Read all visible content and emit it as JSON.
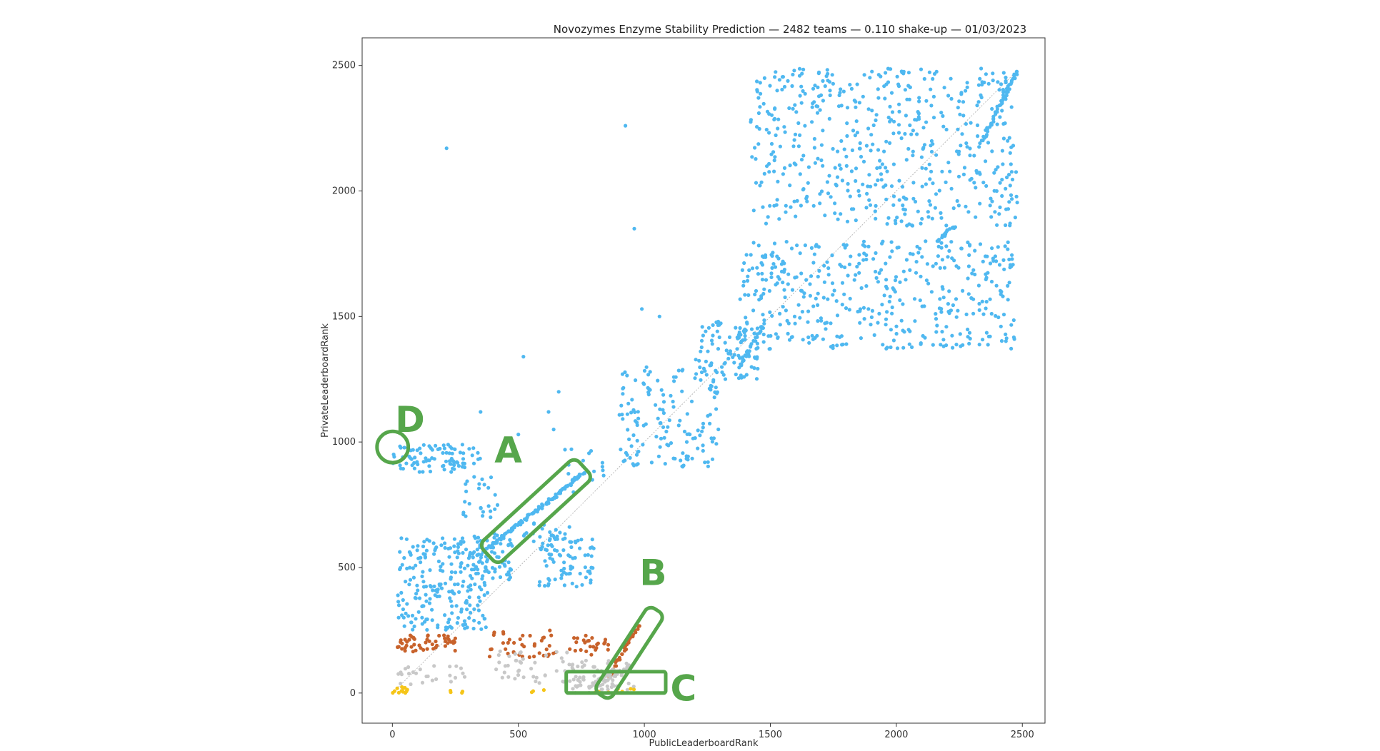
{
  "chart_data": {
    "type": "scatter",
    "title": "Novozymes Enzyme Stability Prediction — 2482 teams — 0.110 shake-up — 01/03/2023",
    "xlabel": "PublicLeaderboardRank",
    "ylabel": "PrivateLeaderboardRank",
    "xlim": [
      -120,
      2590
    ],
    "ylim": [
      -120,
      2610
    ],
    "xticks": [
      0,
      500,
      1000,
      1500,
      2000,
      2500
    ],
    "yticks": [
      0,
      500,
      1000,
      1500,
      2000,
      2500
    ],
    "grid": false,
    "legend": "none",
    "diagonal": {
      "from": [
        0,
        0
      ],
      "to": [
        2482,
        2482
      ],
      "color": "#bbbbbb"
    },
    "colors": {
      "blue": "#4fb8f0",
      "orange": "#c8622b",
      "gray": "#c8c8c8",
      "gold": "#f5c518",
      "annotation": "#56a64b"
    },
    "points": {
      "outliers": [
        [
          215,
          2170
        ],
        [
          925,
          2260
        ],
        [
          960,
          1850
        ],
        [
          990,
          1530
        ],
        [
          1060,
          1500
        ],
        [
          520,
          1340
        ],
        [
          350,
          1120
        ],
        [
          660,
          1200
        ],
        [
          640,
          1050
        ],
        [
          500,
          1030
        ],
        [
          620,
          1120
        ]
      ],
      "lines": [
        {
          "color": "blue",
          "from": [
            370,
            570
          ],
          "to": [
            640,
            780
          ],
          "n": 70
        },
        {
          "color": "blue",
          "from": [
            640,
            780
          ],
          "to": [
            760,
            880
          ],
          "n": 35
        },
        {
          "color": "blue",
          "from": [
            2160,
            1800
          ],
          "to": [
            2230,
            1860
          ],
          "n": 18
        },
        {
          "color": "blue",
          "from": [
            2340,
            2200
          ],
          "to": [
            2480,
            2480
          ],
          "n": 50
        },
        {
          "color": "blue",
          "from": [
            1380,
            1300
          ],
          "to": [
            1480,
            1480
          ],
          "n": 25
        },
        {
          "color": "orange",
          "from": [
            860,
            70
          ],
          "to": [
            980,
            270
          ],
          "n": 30
        },
        {
          "color": "gray",
          "from": [
            780,
            20
          ],
          "to": [
            880,
            90
          ],
          "n": 20
        },
        {
          "color": "gray",
          "from": [
            820,
            30
          ],
          "to": [
            940,
            110
          ],
          "n": 20
        }
      ],
      "clusters": [
        {
          "color": "blue",
          "x": [
            0,
            350
          ],
          "y": [
            880,
            990
          ],
          "n": 90
        },
        {
          "color": "blue",
          "x": [
            20,
            380
          ],
          "y": [
            250,
            620
          ],
          "n": 230
        },
        {
          "color": "blue",
          "x": [
            320,
            480
          ],
          "y": [
            450,
            640
          ],
          "n": 60
        },
        {
          "color": "blue",
          "x": [
            280,
            430
          ],
          "y": [
            700,
            880
          ],
          "n": 25
        },
        {
          "color": "blue",
          "x": [
            580,
            800
          ],
          "y": [
            420,
            620
          ],
          "n": 70
        },
        {
          "color": "blue",
          "x": [
            520,
            720
          ],
          "y": [
            560,
            680
          ],
          "n": 30
        },
        {
          "color": "blue",
          "x": [
            680,
            850
          ],
          "y": [
            800,
            1000
          ],
          "n": 15
        },
        {
          "color": "blue",
          "x": [
            900,
            1300
          ],
          "y": [
            900,
            1300
          ],
          "n": 150
        },
        {
          "color": "blue",
          "x": [
            1200,
            1450
          ],
          "y": [
            1250,
            1500
          ],
          "n": 90
        },
        {
          "color": "blue",
          "x": [
            1380,
            2480
          ],
          "y": [
            1370,
            1800
          ],
          "n": 430
        },
        {
          "color": "blue",
          "x": [
            1420,
            2480
          ],
          "y": [
            1860,
            2490
          ],
          "n": 520
        },
        {
          "color": "orange",
          "x": [
            20,
            250
          ],
          "y": [
            165,
            230
          ],
          "n": 50
        },
        {
          "color": "orange",
          "x": [
            370,
            650
          ],
          "y": [
            140,
            250
          ],
          "n": 40
        },
        {
          "color": "orange",
          "x": [
            700,
            860
          ],
          "y": [
            150,
            230
          ],
          "n": 25
        },
        {
          "color": "gray",
          "x": [
            20,
            300
          ],
          "y": [
            30,
            110
          ],
          "n": 25
        },
        {
          "color": "gray",
          "x": [
            400,
            700
          ],
          "y": [
            40,
            170
          ],
          "n": 40
        },
        {
          "color": "gray",
          "x": [
            700,
            960
          ],
          "y": [
            0,
            130
          ],
          "n": 60
        },
        {
          "color": "gold",
          "x": [
            0,
            60
          ],
          "y": [
            0,
            25
          ],
          "n": 12
        },
        {
          "color": "gold",
          "x": [
            230,
            280
          ],
          "y": [
            0,
            20
          ],
          "n": 4
        },
        {
          "color": "gold",
          "x": [
            480,
            660
          ],
          "y": [
            0,
            15
          ],
          "n": 3
        },
        {
          "color": "gold",
          "x": [
            800,
            960
          ],
          "y": [
            0,
            20
          ],
          "n": 8
        }
      ]
    },
    "annotations": [
      {
        "label": "A",
        "shape": "rotated-rect",
        "x1": 380,
        "y1": 550,
        "x2": 760,
        "y2": 900,
        "halfwidth": 55,
        "label_pos": [
          460,
          920
        ]
      },
      {
        "label": "B",
        "shape": "rotated-rect",
        "x1": 830,
        "y1": -10,
        "x2": 1050,
        "y2": 330,
        "halfwidth": 38,
        "label_pos": [
          1035,
          430
        ]
      },
      {
        "label": "C",
        "shape": "rect",
        "x1": 690,
        "y1": 0,
        "x2": 1085,
        "y2": 85,
        "label_pos": [
          1155,
          -30
        ]
      },
      {
        "label": "D",
        "shape": "circle",
        "cx": 1,
        "cy": 980,
        "r": 62,
        "label_pos": [
          70,
          1040
        ]
      }
    ]
  }
}
